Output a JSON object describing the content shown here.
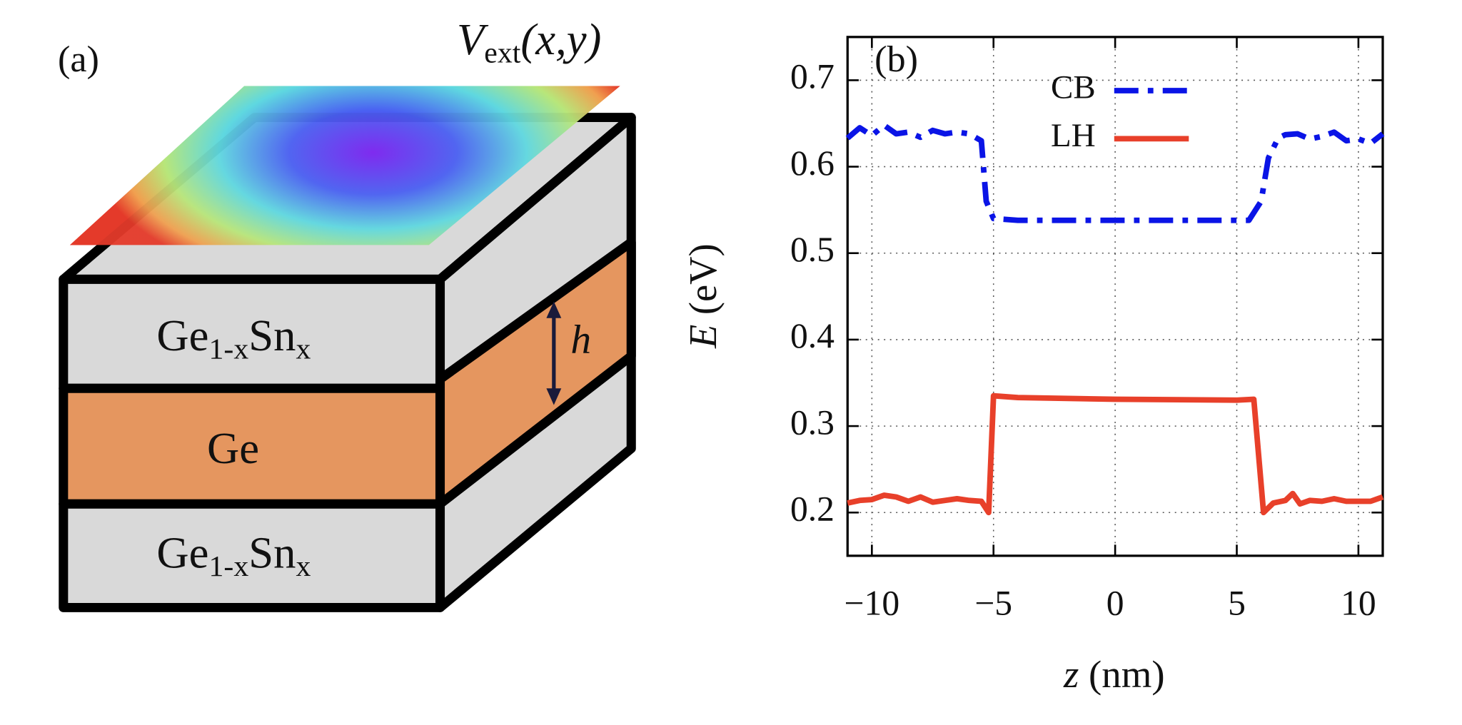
{
  "diagram": {
    "panel_label": "(a)",
    "potential_label": {
      "symbol": "V",
      "sub": "ext",
      "args": "(x,y)"
    },
    "layers": [
      {
        "base": "Ge",
        "sub1": "1-x",
        "mid": "Sn",
        "sub2": "x"
      },
      {
        "base": "Ge"
      },
      {
        "base": "Ge",
        "sub1": "1-x",
        "mid": "Sn",
        "sub2": "x"
      }
    ],
    "height_label": "h"
  },
  "chart_data": {
    "type": "line",
    "panel_label": "(b)",
    "x_label": {
      "symbol": "z",
      "unit": "(nm)"
    },
    "y_label": {
      "symbol": "E",
      "unit": "(eV)"
    },
    "xlim": [
      -11,
      11
    ],
    "ylim": [
      0.15,
      0.75
    ],
    "xticks": [
      {
        "value": -10,
        "label": "−10"
      },
      {
        "value": -5,
        "label": "−5"
      },
      0,
      5,
      10
    ],
    "yticks": [
      0.2,
      0.3,
      0.4,
      0.5,
      0.6,
      0.7
    ],
    "grid": true,
    "legend": "top",
    "series": [
      {
        "name": "CB",
        "color": "#0a14e6",
        "style": "dashdot",
        "x": [
          -11,
          -10.5,
          -10,
          -9.5,
          -9,
          -8.5,
          -8,
          -7.5,
          -7,
          -6.5,
          -6,
          -5.5,
          -5.3,
          -5,
          -4,
          -2,
          0,
          2,
          4,
          5.5,
          6,
          6.3,
          6.7,
          7,
          7.5,
          8,
          8.5,
          9,
          9.5,
          10,
          10.5,
          11
        ],
        "values": [
          0.633,
          0.645,
          0.636,
          0.648,
          0.638,
          0.64,
          0.634,
          0.642,
          0.638,
          0.64,
          0.638,
          0.63,
          0.56,
          0.54,
          0.538,
          0.538,
          0.538,
          0.538,
          0.538,
          0.538,
          0.56,
          0.61,
          0.633,
          0.637,
          0.638,
          0.632,
          0.635,
          0.64,
          0.63,
          0.632,
          0.627,
          0.638
        ]
      },
      {
        "name": "LH",
        "color": "#e8402a",
        "style": "solid",
        "x": [
          -11,
          -10.5,
          -10,
          -9.5,
          -9,
          -8.5,
          -8,
          -7.5,
          -7,
          -6.5,
          -6,
          -5.5,
          -5.2,
          -5,
          -4,
          0,
          5,
          5.7,
          6.1,
          6.5,
          7,
          7.3,
          7.6,
          8,
          8.5,
          9,
          9.5,
          10,
          10.5,
          11
        ],
        "values": [
          0.211,
          0.214,
          0.215,
          0.22,
          0.218,
          0.213,
          0.218,
          0.212,
          0.214,
          0.216,
          0.214,
          0.213,
          0.2,
          0.335,
          0.333,
          0.331,
          0.33,
          0.331,
          0.2,
          0.211,
          0.214,
          0.222,
          0.21,
          0.214,
          0.213,
          0.216,
          0.213,
          0.213,
          0.213,
          0.218
        ]
      }
    ]
  }
}
